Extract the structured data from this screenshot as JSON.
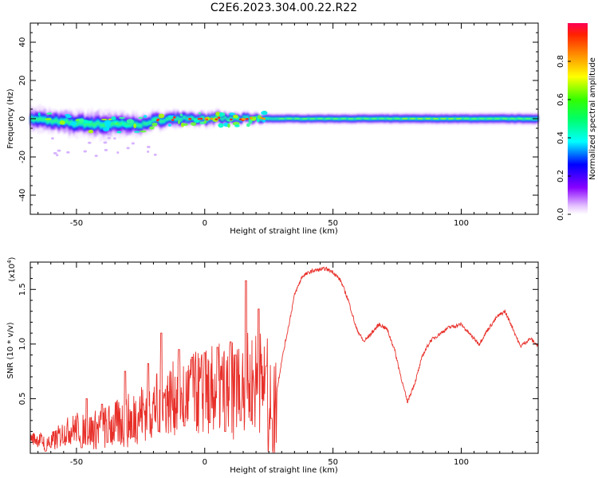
{
  "figure_title": "C2E6.2023.304.00.22.R22",
  "colors": {
    "snr_line": "#e8302a",
    "axis": "#000000",
    "background": "#ffffff"
  },
  "chart_data": [
    {
      "type": "heatmap",
      "xlabel": "Height of straight line (km)",
      "ylabel": "Frequency (Hz)",
      "xlim": [
        -68,
        130
      ],
      "ylim": [
        -50,
        50
      ],
      "xticks": [
        -50,
        0,
        50,
        100
      ],
      "yticks": [
        -40,
        -20,
        0,
        20,
        40
      ],
      "colorbar": {
        "label": "Normalized spectral amplitude",
        "range": [
          0,
          1
        ],
        "ticks": [
          "0.0",
          "0.2",
          "0.4",
          "0.6",
          "0.8"
        ],
        "colormap": "hsv-rainbow (white/violet at 0 to red at 1)"
      },
      "band": {
        "description": "Signal energy concentrated near 0 Hz; wide and noisy below about 25 km, steady narrow band above",
        "center_hz": [
          [
            -68,
            0
          ],
          [
            -55,
            -2
          ],
          [
            -40,
            -3
          ],
          [
            -25,
            -3
          ],
          [
            -15,
            0
          ],
          [
            0,
            0
          ],
          [
            20,
            0
          ],
          [
            60,
            0
          ],
          [
            130,
            0
          ]
        ],
        "halfwidth_hz": [
          [
            -68,
            6
          ],
          [
            -40,
            7
          ],
          [
            -20,
            5
          ],
          [
            0,
            4
          ],
          [
            20,
            3
          ],
          [
            40,
            3
          ],
          [
            130,
            3.5
          ]
        ]
      }
    },
    {
      "type": "line",
      "xlabel": "Height of straight line (km)",
      "ylabel": "SNR (10 * v/v)",
      "y_multiplier": "(x10",
      "y_multiplier_exp": "4",
      "y_multiplier_close": ")",
      "xlim": [
        -68,
        130
      ],
      "ylim": [
        0,
        1.75
      ],
      "xticks": [
        -50,
        0,
        50,
        100
      ],
      "yticks": [
        "0.5",
        "1.0",
        "1.5"
      ],
      "series": [
        {
          "envelope": [
            [
              -68,
              0.15
            ],
            [
              -60,
              0.1
            ],
            [
              -55,
              0.2
            ],
            [
              -50,
              0.25
            ],
            [
              -45,
              0.22
            ],
            [
              -40,
              0.25
            ],
            [
              -35,
              0.28
            ],
            [
              -30,
              0.32
            ],
            [
              -25,
              0.4
            ],
            [
              -20,
              0.45
            ],
            [
              -15,
              0.52
            ],
            [
              -10,
              0.55
            ],
            [
              -5,
              0.58
            ],
            [
              0,
              0.6
            ],
            [
              5,
              0.62
            ],
            [
              10,
              0.6
            ],
            [
              15,
              0.65
            ],
            [
              20,
              0.7
            ],
            [
              23,
              0.68
            ],
            [
              27,
              0.4
            ],
            [
              30,
              0.85
            ],
            [
              33,
              1.2
            ],
            [
              35,
              1.45
            ],
            [
              38,
              1.62
            ],
            [
              42,
              1.67
            ],
            [
              47,
              1.69
            ],
            [
              50,
              1.66
            ],
            [
              53,
              1.58
            ],
            [
              56,
              1.4
            ],
            [
              59,
              1.15
            ],
            [
              62,
              1.02
            ],
            [
              65,
              1.1
            ],
            [
              68,
              1.18
            ],
            [
              71,
              1.14
            ],
            [
              74,
              0.95
            ],
            [
              77,
              0.65
            ],
            [
              79,
              0.47
            ],
            [
              82,
              0.65
            ],
            [
              85,
              0.9
            ],
            [
              88,
              1.03
            ],
            [
              92,
              1.1
            ],
            [
              95,
              1.15
            ],
            [
              100,
              1.18
            ],
            [
              103,
              1.1
            ],
            [
              107,
              1.0
            ],
            [
              110,
              1.12
            ],
            [
              114,
              1.25
            ],
            [
              117,
              1.3
            ],
            [
              120,
              1.15
            ],
            [
              123,
              0.98
            ],
            [
              127,
              1.05
            ],
            [
              130,
              0.98
            ]
          ],
          "spikes": [
            [
              -46,
              0.5
            ],
            [
              -40,
              0.45
            ],
            [
              -31,
              0.75
            ],
            [
              -22,
              0.82
            ],
            [
              -17,
              1.1
            ],
            [
              -10,
              0.95
            ],
            [
              -5,
              0.88
            ],
            [
              0,
              0.92
            ],
            [
              5,
              0.97
            ],
            [
              10,
              1.02
            ],
            [
              12,
              0.9
            ],
            [
              16,
              1.58
            ],
            [
              21,
              1.32
            ],
            [
              24,
              0.8
            ]
          ],
          "dips": [
            [
              -62,
              0.02
            ],
            [
              -48,
              0.05
            ],
            [
              -38,
              0.1
            ],
            [
              -28,
              0.15
            ],
            [
              -18,
              0.2
            ],
            [
              -8,
              0.25
            ],
            [
              2,
              0.28
            ],
            [
              8,
              0.2
            ],
            [
              14,
              0.3
            ],
            [
              18,
              0.3
            ],
            [
              26,
              0.32
            ]
          ]
        }
      ]
    }
  ]
}
